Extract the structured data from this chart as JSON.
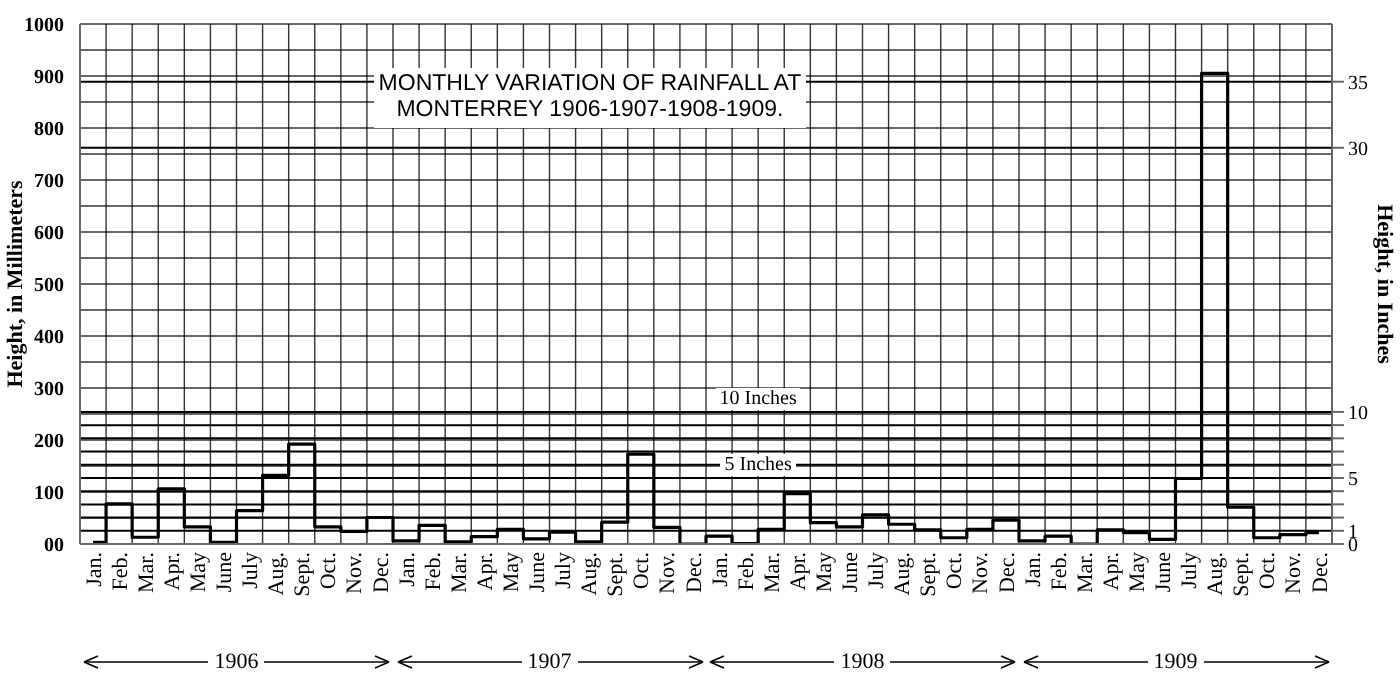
{
  "chart_data": {
    "type": "step",
    "title": "MONTHLY VARIATION OF RAINFALL AT MONTERREY 1906-1907-1908-1909.",
    "xlabel": null,
    "ylabel": "Height, in Millimeters",
    "y2label": "Height, in Inches",
    "categories": [
      "Jan.",
      "Feb.",
      "Mar.",
      "Apr.",
      "May",
      "June",
      "July",
      "Aug.",
      "Sept.",
      "Oct.",
      "Nov.",
      "Dec.",
      "Jan.",
      "Feb.",
      "Mar.",
      "Apr.",
      "May",
      "June",
      "July",
      "Aug.",
      "Sept.",
      "Oct.",
      "Nov.",
      "Dec.",
      "Jan.",
      "Feb.",
      "Mar.",
      "Apr.",
      "May",
      "June",
      "July",
      "Aug.",
      "Sept.",
      "Oct.",
      "Nov.",
      "Dec.",
      "Jan.",
      "Feb.",
      "Mar.",
      "Apr.",
      "May",
      "June",
      "July",
      "Aug.",
      "Sept.",
      "Oct.",
      "Nov.",
      "Dec."
    ],
    "series": [
      {
        "color": "#000000",
        "values": [
          3,
          77,
          13,
          106,
          33,
          3,
          64,
          132,
          192,
          33,
          24,
          51,
          6,
          36,
          4,
          14,
          28,
          10,
          23,
          4,
          42,
          173,
          32,
          0,
          15,
          1,
          28,
          97,
          41,
          33,
          56,
          38,
          27,
          12,
          28,
          46,
          6,
          15,
          0,
          27,
          22,
          9,
          126,
          905,
          71,
          12,
          18,
          22
        ]
      }
    ],
    "ylim": [
      0,
      1000
    ],
    "yticks": [
      {
        "value": 0,
        "label": "00"
      },
      {
        "value": 50,
        "label": null
      },
      100,
      {
        "value": 150,
        "label": null
      },
      200,
      {
        "value": 250,
        "label": null
      },
      300,
      {
        "value": 350,
        "label": null
      },
      400,
      {
        "value": 450,
        "label": null
      },
      500,
      {
        "value": 550,
        "label": null
      },
      600,
      {
        "value": 650,
        "label": null
      },
      700,
      {
        "value": 750,
        "label": null
      },
      800,
      {
        "value": 850,
        "label": null
      },
      900,
      {
        "value": 950,
        "label": null
      },
      1000
    ],
    "y2lim": [
      0,
      39.37
    ],
    "y2ticks": [
      0,
      1,
      {
        "value": 2,
        "label": null
      },
      {
        "value": 3,
        "label": null
      },
      {
        "value": 4,
        "label": null
      },
      5,
      {
        "value": 6,
        "label": null
      },
      {
        "value": 7,
        "label": null
      },
      {
        "value": 8,
        "label": null
      },
      {
        "value": 9,
        "label": null
      },
      10,
      30,
      35
    ],
    "annotations": [
      "1906",
      "1907",
      "1908",
      "1909",
      "10 Inches",
      "5 Inches"
    ],
    "grid": true,
    "legend": false,
    "marker": "none",
    "line_style": "solid"
  }
}
